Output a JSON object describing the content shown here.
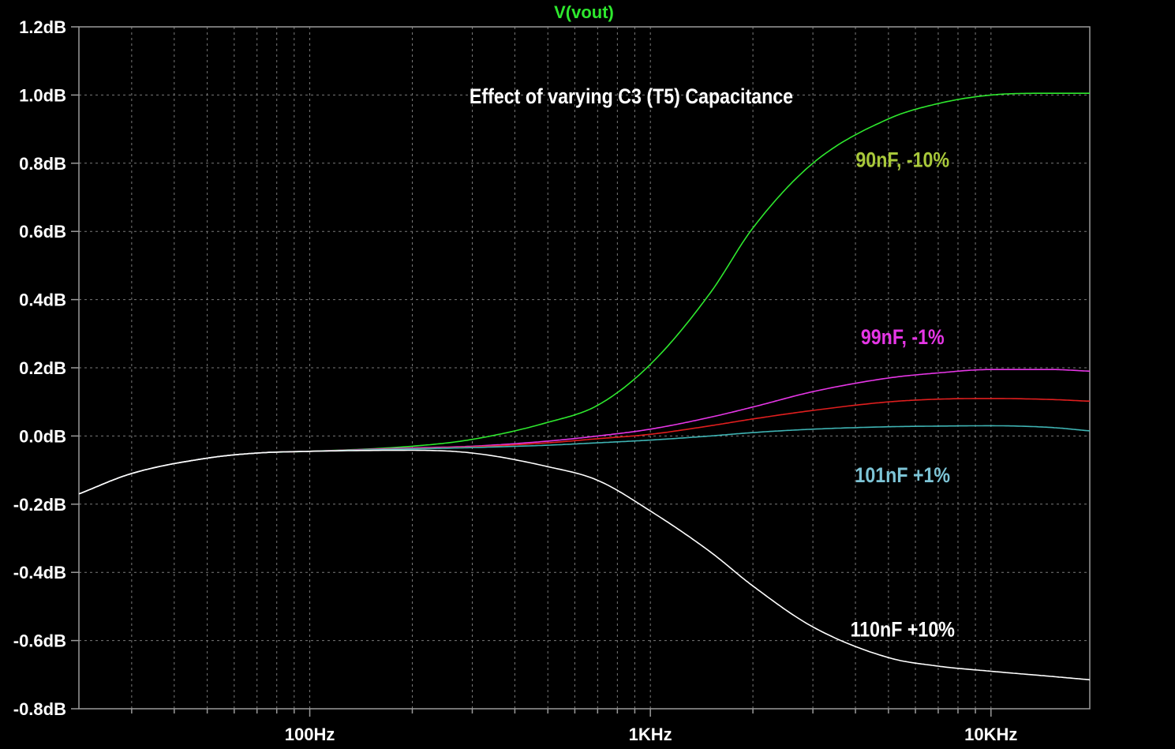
{
  "chart_data": {
    "type": "line",
    "trace_name": "V(vout)",
    "trace_name_color": "#2ee82e",
    "title": "Effect of varying C3 (T5) Capacitance",
    "x_scale": "log",
    "xlim": [
      21,
      19500
    ],
    "ylim": [
      -0.8,
      1.2
    ],
    "x_ticks": [
      {
        "value": 100,
        "label": "100Hz"
      },
      {
        "value": 1000,
        "label": "1KHz"
      },
      {
        "value": 10000,
        "label": "10KHz"
      }
    ],
    "y_ticks": [
      {
        "value": 1.2,
        "label": "1.2dB"
      },
      {
        "value": 1.0,
        "label": "1.0dB"
      },
      {
        "value": 0.8,
        "label": "0.8dB"
      },
      {
        "value": 0.6,
        "label": "0.6dB"
      },
      {
        "value": 0.4,
        "label": "0.4dB"
      },
      {
        "value": 0.2,
        "label": "0.2dB"
      },
      {
        "value": 0.0,
        "label": "0.0dB"
      },
      {
        "value": -0.2,
        "label": "-0.2dB"
      },
      {
        "value": -0.4,
        "label": "-0.4dB"
      },
      {
        "value": -0.6,
        "label": "-0.6dB"
      },
      {
        "value": -0.8,
        "label": "-0.8dB"
      }
    ],
    "grid": true,
    "series": [
      {
        "color": "#2ee82e",
        "x": [
          21,
          30,
          50,
          70,
          100,
          200,
          300,
          500,
          700,
          1000,
          1500,
          2000,
          3000,
          5000,
          7000,
          10000,
          15000,
          19500
        ],
        "y": [
          -0.17,
          -0.11,
          -0.065,
          -0.05,
          -0.045,
          -0.03,
          -0.01,
          0.04,
          0.09,
          0.21,
          0.42,
          0.61,
          0.8,
          0.93,
          0.975,
          1.0,
          1.005,
          1.005
        ]
      },
      {
        "color": "#e636e6",
        "x": [
          21,
          30,
          50,
          70,
          100,
          200,
          300,
          500,
          700,
          1000,
          1500,
          2000,
          3000,
          5000,
          7000,
          10000,
          15000,
          19500
        ],
        "y": [
          -0.17,
          -0.11,
          -0.065,
          -0.05,
          -0.045,
          -0.035,
          -0.03,
          -0.015,
          0.0,
          0.02,
          0.055,
          0.085,
          0.13,
          0.17,
          0.185,
          0.195,
          0.195,
          0.19
        ]
      },
      {
        "color": "#e01e1e",
        "x": [
          21,
          30,
          50,
          70,
          100,
          200,
          300,
          500,
          700,
          1000,
          1500,
          2000,
          3000,
          5000,
          7000,
          10000,
          15000,
          19500
        ],
        "y": [
          -0.17,
          -0.11,
          -0.065,
          -0.05,
          -0.045,
          -0.037,
          -0.032,
          -0.02,
          -0.008,
          0.005,
          0.03,
          0.05,
          0.075,
          0.1,
          0.108,
          0.11,
          0.107,
          0.102
        ]
      },
      {
        "color": "#3fb4b4",
        "x": [
          21,
          30,
          50,
          70,
          100,
          200,
          300,
          500,
          700,
          1000,
          1500,
          2000,
          3000,
          5000,
          7000,
          10000,
          15000,
          19500
        ],
        "y": [
          -0.17,
          -0.11,
          -0.065,
          -0.05,
          -0.045,
          -0.038,
          -0.034,
          -0.027,
          -0.02,
          -0.012,
          0.0,
          0.01,
          0.02,
          0.027,
          0.029,
          0.03,
          0.025,
          0.015
        ]
      },
      {
        "color": "#ffffff",
        "x": [
          21,
          30,
          50,
          70,
          100,
          200,
          300,
          500,
          700,
          1000,
          1500,
          2000,
          3000,
          5000,
          7000,
          10000,
          15000,
          19500
        ],
        "y": [
          -0.17,
          -0.11,
          -0.065,
          -0.05,
          -0.045,
          -0.042,
          -0.05,
          -0.09,
          -0.13,
          -0.22,
          -0.34,
          -0.44,
          -0.56,
          -0.65,
          -0.675,
          -0.69,
          -0.705,
          -0.715
        ]
      }
    ],
    "annotations": [
      {
        "text": "90nF, -10%",
        "color": "#a8c83a",
        "x": 5500,
        "y": 0.81
      },
      {
        "text": "99nF, -1%",
        "color": "#e636e6",
        "x": 5500,
        "y": 0.29
      },
      {
        "text": "101nF +1%",
        "color": "#7dc4d6",
        "x": 5500,
        "y": -0.115
      },
      {
        "text": "110nF +10%",
        "color": "#ffffff",
        "x": 5500,
        "y": -0.567
      }
    ]
  }
}
